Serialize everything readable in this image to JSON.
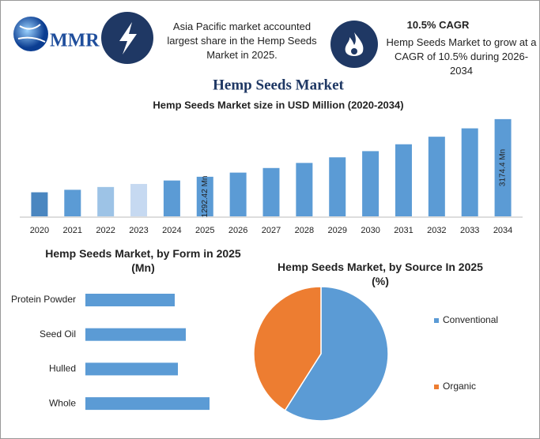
{
  "header": {
    "logo": "MMR",
    "info": "Asia Pacific market accounted largest share in the Hemp Seeds Market in 2025.",
    "cagr_title": "10.5% CAGR",
    "cagr_text": "Hemp Seeds Market to grow at a CAGR of 10.5% during 2026-2034"
  },
  "title": "Hemp Seeds Market",
  "chart_data": [
    {
      "type": "bar",
      "title": "Hemp Seeds Market size in USD Million (2020-2034)",
      "categories": [
        "2020",
        "2021",
        "2022",
        "2023",
        "2024",
        "2025",
        "2026",
        "2027",
        "2028",
        "2029",
        "2030",
        "2031",
        "2032",
        "2033",
        "2034"
      ],
      "values": [
        785,
        867,
        958,
        1058,
        1170,
        1292.42,
        1428,
        1578,
        1744,
        1927,
        2129,
        2353,
        2600,
        2873,
        3174.4
      ],
      "value_labels": [
        null,
        null,
        null,
        null,
        null,
        "1292.42 Mn",
        null,
        null,
        null,
        null,
        null,
        null,
        null,
        null,
        "3174.4 Mn"
      ],
      "colors": [
        "#4a86c0",
        "#5b9bd5",
        "#9dc3e6",
        "#c6d9f1",
        "#5b9bd5",
        "#5b9bd5",
        "#5b9bd5",
        "#5b9bd5",
        "#5b9bd5",
        "#5b9bd5",
        "#5b9bd5",
        "#5b9bd5",
        "#5b9bd5",
        "#5b9bd5",
        "#5b9bd5"
      ],
      "ylim": [
        0,
        3300
      ]
    },
    {
      "type": "hbar",
      "title": "Hemp Seeds Market, by Form in 2025 (Mn)",
      "categories": [
        "Protein Powder",
        "Seed Oil",
        "Hulled",
        "Whole"
      ],
      "values": [
        113,
        127,
        117,
        157
      ],
      "color": "#5b9bd5",
      "xlim": [
        0,
        200
      ]
    },
    {
      "type": "pie",
      "title": "Hemp Seeds Market, by Source In 2025 (%)",
      "categories": [
        "Conventional",
        "Organic"
      ],
      "values": [
        59,
        41
      ],
      "colors": [
        "#5b9bd5",
        "#ed7d31"
      ],
      "legend": "right"
    }
  ]
}
